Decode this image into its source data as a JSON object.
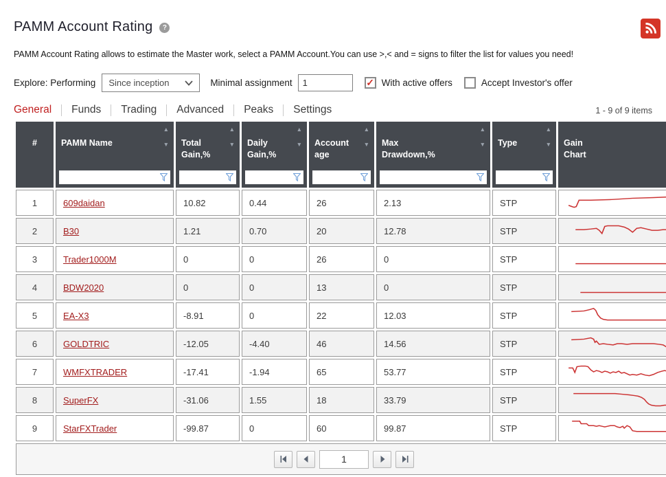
{
  "page": {
    "title": "PAMM Account Rating",
    "description": "PAMM Account Rating allows to estimate the Master work, select a PAMM Account.You can use >,< and = signs to filter the list for values you need!",
    "items_count": "1 - 9 of 9 items"
  },
  "icons": {
    "help_icon": "?",
    "rss_icon": "rss-feed",
    "chevron_down_icon": "chevron-down",
    "checkmark_icon": "✓",
    "sort_asc_icon": "▲",
    "sort_desc_icon": "▼",
    "filter_icon": "funnel",
    "first_page_icon": "first-page",
    "prev_page_icon": "previous-page",
    "next_page_icon": "next-page",
    "last_page_icon": "last-page"
  },
  "colors": {
    "accent_red": "#c01f1f",
    "link_red": "#a21c1c",
    "sparkline_red": "#cc3333",
    "rss_red": "#d43527",
    "check_red": "#d03028",
    "header_bg": "#45494f"
  },
  "filters": {
    "explore_label": "Explore: Performing",
    "period_select": {
      "value": "Since inception"
    },
    "min_assignment_label": "Minimal assignment",
    "min_assignment_value": "1",
    "checkboxes": [
      {
        "label": "With active offers",
        "checked": true
      },
      {
        "label": "Accept Investor's offer",
        "checked": false
      }
    ]
  },
  "tabs": [
    {
      "label": "General",
      "active": true
    },
    {
      "label": "Funds",
      "active": false
    },
    {
      "label": "Trading",
      "active": false
    },
    {
      "label": "Advanced",
      "active": false
    },
    {
      "label": "Peaks",
      "active": false
    },
    {
      "label": "Settings",
      "active": false
    }
  ],
  "table": {
    "columns": [
      {
        "label": "#",
        "sortable": false,
        "filterable": false
      },
      {
        "label": "PAMM Name",
        "sortable": true,
        "filterable": true
      },
      {
        "label": "Total\nGain,%",
        "sortable": true,
        "filterable": true
      },
      {
        "label": "Daily\nGain,%",
        "sortable": true,
        "filterable": true
      },
      {
        "label": "Account\nage",
        "sortable": true,
        "filterable": true
      },
      {
        "label": "Max\nDrawdown,%",
        "sortable": true,
        "filterable": true
      },
      {
        "label": "Type",
        "sortable": true,
        "filterable": true
      },
      {
        "label": "Gain\nChart",
        "sortable": false,
        "filterable": false
      }
    ],
    "rows": [
      {
        "num": "1",
        "name": "609daidan",
        "total_gain": "10.82",
        "daily_gain": "0.44",
        "account_age": "26",
        "max_drawdown": "2.13",
        "type": "STP"
      },
      {
        "num": "2",
        "name": "B30",
        "total_gain": "1.21",
        "daily_gain": "0.70",
        "account_age": "20",
        "max_drawdown": "12.78",
        "type": "STP"
      },
      {
        "num": "3",
        "name": "Trader1000M",
        "total_gain": "0",
        "daily_gain": "0",
        "account_age": "26",
        "max_drawdown": "0",
        "type": "STP"
      },
      {
        "num": "4",
        "name": "BDW2020",
        "total_gain": "0",
        "daily_gain": "0",
        "account_age": "13",
        "max_drawdown": "0",
        "type": "STP"
      },
      {
        "num": "5",
        "name": "EA-X3",
        "total_gain": "-8.91",
        "daily_gain": "0",
        "account_age": "22",
        "max_drawdown": "12.03",
        "type": "STP"
      },
      {
        "num": "6",
        "name": "GOLDTRIC",
        "total_gain": "-12.05",
        "daily_gain": "-4.40",
        "account_age": "46",
        "max_drawdown": "14.56",
        "type": "STP"
      },
      {
        "num": "7",
        "name": "WMFXTRADER",
        "total_gain": "-17.41",
        "daily_gain": "-1.94",
        "account_age": "65",
        "max_drawdown": "53.77",
        "type": "STP"
      },
      {
        "num": "8",
        "name": "SuperFX",
        "total_gain": "-31.06",
        "daily_gain": "1.55",
        "account_age": "18",
        "max_drawdown": "33.79",
        "type": "STP"
      },
      {
        "num": "9",
        "name": "StarFXTrader",
        "total_gain": "-99.87",
        "daily_gain": "0",
        "account_age": "60",
        "max_drawdown": "99.87",
        "type": "STP"
      }
    ]
  },
  "pagination": {
    "page": "1"
  },
  "chart_data": {
    "type": "line",
    "note": "Per-row gain sparklines, points in 150x32 viewBox coordinates (y down)",
    "series": [
      {
        "name": "609daidan",
        "points": [
          [
            8,
            20
          ],
          [
            13,
            22
          ],
          [
            16,
            23
          ],
          [
            19,
            22
          ],
          [
            23,
            12
          ],
          [
            40,
            12
          ],
          [
            70,
            11
          ],
          [
            100,
            9
          ],
          [
            130,
            8
          ],
          [
            150,
            7
          ]
        ]
      },
      {
        "name": "B30",
        "points": [
          [
            18,
            14
          ],
          [
            30,
            14
          ],
          [
            40,
            13
          ],
          [
            48,
            12
          ],
          [
            52,
            15
          ],
          [
            56,
            20
          ],
          [
            60,
            9
          ],
          [
            64,
            8
          ],
          [
            72,
            8
          ],
          [
            80,
            8
          ],
          [
            88,
            10
          ],
          [
            94,
            13
          ],
          [
            100,
            18
          ],
          [
            106,
            12
          ],
          [
            112,
            11
          ],
          [
            120,
            13
          ],
          [
            128,
            15
          ],
          [
            136,
            15
          ],
          [
            144,
            14
          ],
          [
            150,
            14
          ]
        ]
      },
      {
        "name": "Trader1000M",
        "points": [
          [
            18,
            23
          ],
          [
            150,
            23
          ]
        ]
      },
      {
        "name": "BDW2020",
        "points": [
          [
            25,
            24
          ],
          [
            150,
            24
          ]
        ]
      },
      {
        "name": "EA-X3",
        "points": [
          [
            12,
            10
          ],
          [
            30,
            9
          ],
          [
            38,
            7
          ],
          [
            44,
            5
          ],
          [
            47,
            8
          ],
          [
            50,
            15
          ],
          [
            54,
            20
          ],
          [
            58,
            22
          ],
          [
            64,
            23
          ],
          [
            150,
            23
          ]
        ]
      },
      {
        "name": "GOLDTRIC",
        "points": [
          [
            12,
            10
          ],
          [
            30,
            9
          ],
          [
            40,
            7
          ],
          [
            44,
            9
          ],
          [
            46,
            14
          ],
          [
            48,
            12
          ],
          [
            52,
            17
          ],
          [
            58,
            16
          ],
          [
            64,
            17
          ],
          [
            72,
            18
          ],
          [
            78,
            16
          ],
          [
            84,
            16
          ],
          [
            92,
            17
          ],
          [
            100,
            16
          ],
          [
            110,
            16
          ],
          [
            120,
            16
          ],
          [
            130,
            16
          ],
          [
            138,
            17
          ],
          [
            144,
            18
          ],
          [
            150,
            22
          ]
        ]
      },
      {
        "name": "WMFXTRADER",
        "points": [
          [
            8,
            10
          ],
          [
            14,
            10
          ],
          [
            17,
            17
          ],
          [
            20,
            8
          ],
          [
            26,
            7
          ],
          [
            32,
            7
          ],
          [
            36,
            8
          ],
          [
            40,
            13
          ],
          [
            44,
            16
          ],
          [
            48,
            14
          ],
          [
            52,
            15
          ],
          [
            56,
            17
          ],
          [
            60,
            15
          ],
          [
            64,
            16
          ],
          [
            68,
            18
          ],
          [
            72,
            16
          ],
          [
            76,
            17
          ],
          [
            80,
            15
          ],
          [
            84,
            18
          ],
          [
            88,
            17
          ],
          [
            92,
            19
          ],
          [
            96,
            21
          ],
          [
            100,
            20
          ],
          [
            106,
            21
          ],
          [
            112,
            19
          ],
          [
            118,
            21
          ],
          [
            124,
            22
          ],
          [
            130,
            20
          ],
          [
            136,
            17
          ],
          [
            142,
            15
          ],
          [
            146,
            14
          ],
          [
            150,
            15
          ]
        ]
      },
      {
        "name": "SuperFX",
        "points": [
          [
            15,
            6
          ],
          [
            60,
            6
          ],
          [
            75,
            6
          ],
          [
            85,
            7
          ],
          [
            95,
            8
          ],
          [
            102,
            9
          ],
          [
            108,
            10
          ],
          [
            113,
            12
          ],
          [
            117,
            15
          ],
          [
            120,
            19
          ],
          [
            123,
            22
          ],
          [
            127,
            24
          ],
          [
            133,
            25
          ],
          [
            140,
            25
          ],
          [
            146,
            24
          ],
          [
            150,
            24
          ]
        ]
      },
      {
        "name": "StarFXTrader",
        "points": [
          [
            13,
            5
          ],
          [
            24,
            5
          ],
          [
            26,
            9
          ],
          [
            34,
            9
          ],
          [
            37,
            12
          ],
          [
            44,
            12
          ],
          [
            48,
            13
          ],
          [
            52,
            12
          ],
          [
            56,
            13
          ],
          [
            60,
            14
          ],
          [
            64,
            13
          ],
          [
            68,
            12
          ],
          [
            74,
            12
          ],
          [
            78,
            14
          ],
          [
            82,
            15
          ],
          [
            86,
            13
          ],
          [
            88,
            16
          ],
          [
            92,
            12
          ],
          [
            96,
            14
          ],
          [
            100,
            20
          ],
          [
            106,
            21
          ],
          [
            150,
            21
          ]
        ]
      }
    ]
  }
}
